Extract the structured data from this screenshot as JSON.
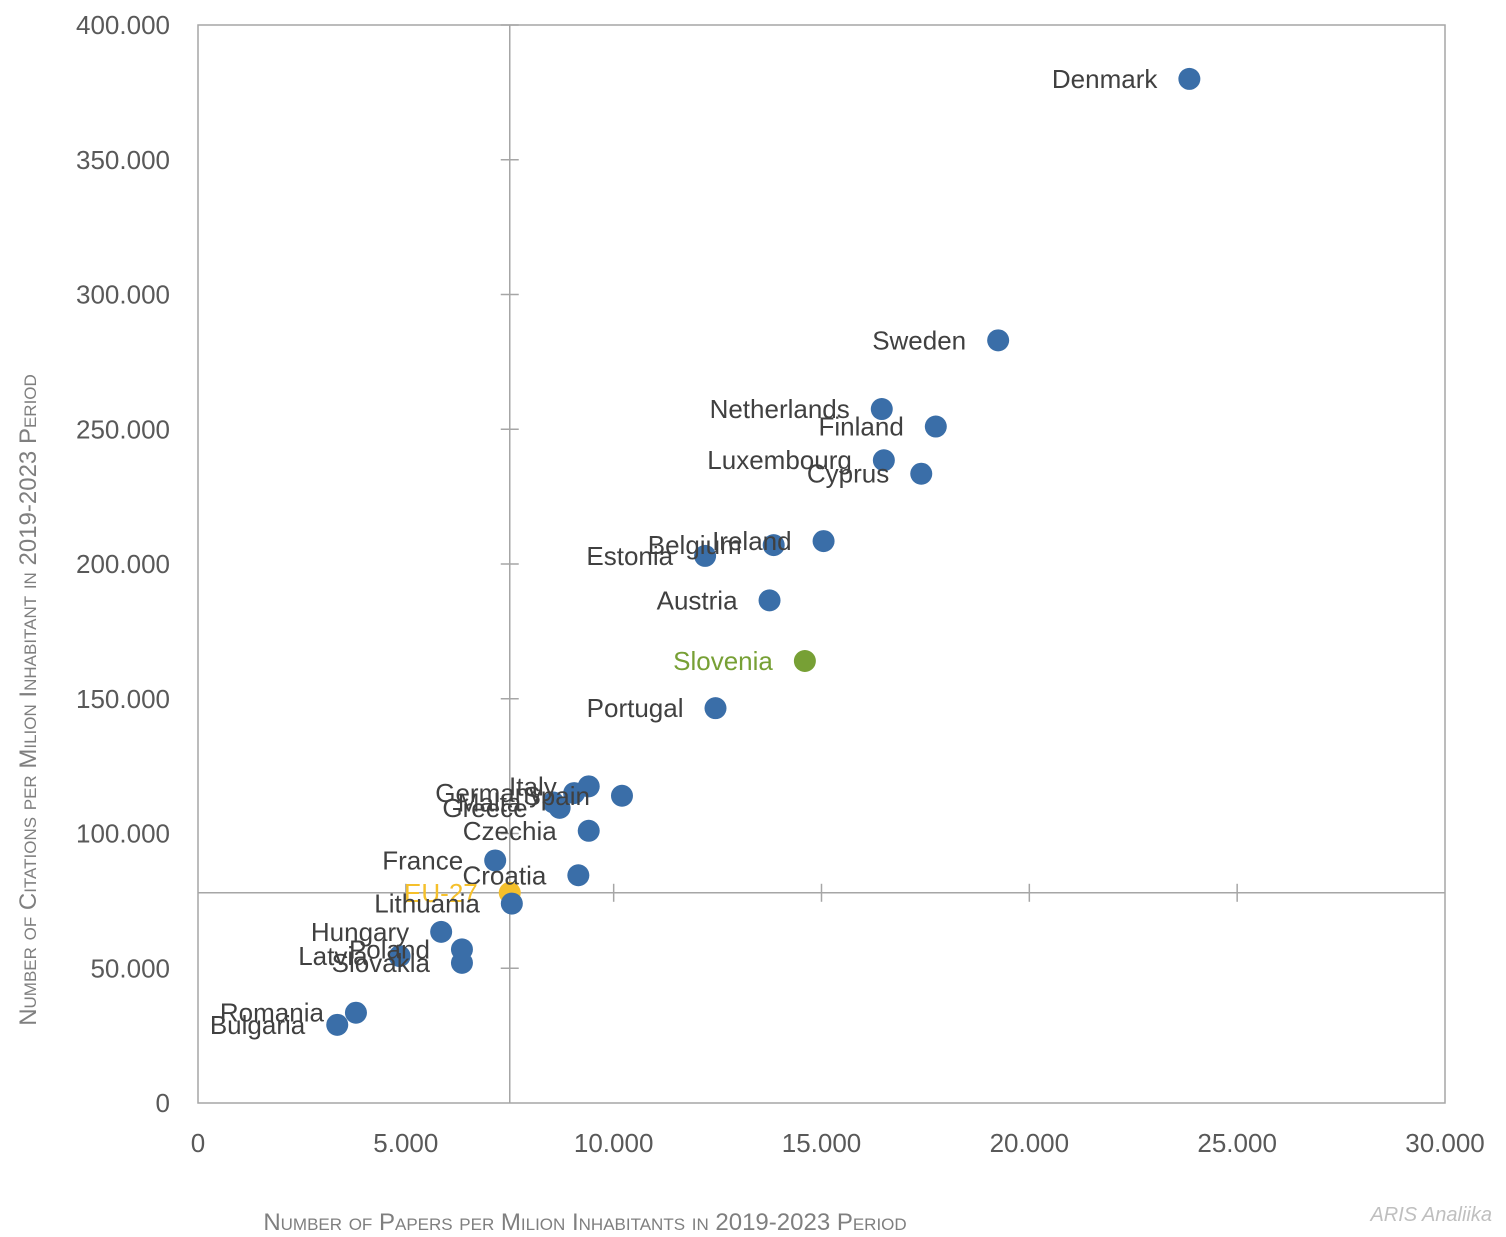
{
  "chart_data": {
    "type": "scatter",
    "title": "",
    "xlabel": "Number of Papers per Milion Inhabitants in 2019-2023 Period",
    "ylabel": "Number of Citations per Milion Inhabitant in 2019-2023 Period",
    "xlim": [
      0,
      30000
    ],
    "ylim": [
      0,
      400000
    ],
    "x_ticks": [
      0,
      5000,
      10000,
      15000,
      20000,
      25000,
      30000
    ],
    "x_tick_labels": [
      "0",
      "5.000",
      "10.000",
      "15.000",
      "20.000",
      "25.000",
      "30.000"
    ],
    "y_ticks": [
      0,
      50000,
      100000,
      150000,
      200000,
      250000,
      300000,
      350000,
      400000
    ],
    "y_tick_labels": [
      "0",
      "50.000",
      "100.000",
      "150.000",
      "200.000",
      "250.000",
      "300.000",
      "350.000",
      "400.000"
    ],
    "reference_lines": {
      "x": 7500,
      "y": 78000
    },
    "grid": false,
    "colors": {
      "default": "#3a6ea8",
      "highlight": "#77a035",
      "reference": "#f5c02b"
    },
    "points": [
      {
        "label": "Denmark",
        "x": 23850,
        "y": 380000,
        "color": "default"
      },
      {
        "label": "Sweden",
        "x": 19250,
        "y": 283000,
        "color": "default"
      },
      {
        "label": "Netherlands",
        "x": 16450,
        "y": 257500,
        "color": "default"
      },
      {
        "label": "Finland",
        "x": 17750,
        "y": 251000,
        "color": "default"
      },
      {
        "label": "Luxembourg",
        "x": 16500,
        "y": 238500,
        "color": "default"
      },
      {
        "label": "Cyprus",
        "x": 17400,
        "y": 233500,
        "color": "default"
      },
      {
        "label": "Ireland",
        "x": 15050,
        "y": 208500,
        "color": "default"
      },
      {
        "label": "Belgium",
        "x": 13850,
        "y": 207000,
        "color": "default"
      },
      {
        "label": "Estonia",
        "x": 12200,
        "y": 203000,
        "color": "default"
      },
      {
        "label": "Austria",
        "x": 13750,
        "y": 186500,
        "color": "default"
      },
      {
        "label": "Slovenia",
        "x": 14600,
        "y": 164000,
        "color": "highlight"
      },
      {
        "label": "Portugal",
        "x": 12450,
        "y": 146500,
        "color": "default"
      },
      {
        "label": "Italy",
        "x": 9400,
        "y": 117500,
        "color": "default"
      },
      {
        "label": "Spain",
        "x": 10200,
        "y": 114000,
        "color": "default"
      },
      {
        "label": "Germany",
        "x": 9050,
        "y": 115000,
        "color": "default"
      },
      {
        "label": "Malta",
        "x": 8550,
        "y": 111500,
        "color": "default"
      },
      {
        "label": "Greece",
        "x": 8700,
        "y": 109500,
        "color": "default"
      },
      {
        "label": "Czechia",
        "x": 9400,
        "y": 101000,
        "color": "default"
      },
      {
        "label": "France",
        "x": 7150,
        "y": 90000,
        "color": "default"
      },
      {
        "label": "Croatia",
        "x": 9150,
        "y": 84500,
        "color": "default"
      },
      {
        "label": "EU-27",
        "x": 7500,
        "y": 78000,
        "color": "reference"
      },
      {
        "label": "Lithuania",
        "x": 7550,
        "y": 74000,
        "color": "default"
      },
      {
        "label": "Hungary",
        "x": 5850,
        "y": 63500,
        "color": "default"
      },
      {
        "label": "Poland",
        "x": 6350,
        "y": 57000,
        "color": "default"
      },
      {
        "label": "Latvia",
        "x": 4850,
        "y": 54500,
        "color": "default"
      },
      {
        "label": "Slovakia",
        "x": 6350,
        "y": 52000,
        "color": "default"
      },
      {
        "label": "Romania",
        "x": 3800,
        "y": 33500,
        "color": "default"
      },
      {
        "label": "Bulgaria",
        "x": 3350,
        "y": 29000,
        "color": "default"
      }
    ]
  },
  "credit": "ARIS Analiika"
}
